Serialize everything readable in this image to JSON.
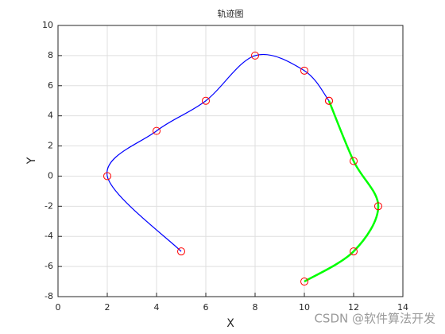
{
  "chart_data": {
    "type": "line",
    "title": "轨迹图",
    "x_label": "X",
    "y_label": "Y",
    "xlim": [
      0,
      14
    ],
    "xticks": [
      0,
      2,
      4,
      6,
      8,
      10,
      12,
      14
    ],
    "ylim": [
      -8,
      10
    ],
    "yticks": [
      -8,
      -6,
      -4,
      -2,
      0,
      2,
      4,
      6,
      8,
      10
    ],
    "grid": true,
    "marker_color": "#ff0000",
    "series": [
      {
        "color": "#0000ff",
        "x": [
          5,
          2,
          4,
          6,
          8,
          10,
          11
        ],
        "values": [
          -5,
          0,
          3,
          5,
          8,
          7,
          5
        ]
      },
      {
        "color": "#00ff00",
        "x": [
          11,
          12,
          13,
          12,
          10
        ],
        "values": [
          5,
          1,
          -2,
          -5,
          -7
        ]
      }
    ],
    "watermark": "CSDN @软件算法开发"
  }
}
